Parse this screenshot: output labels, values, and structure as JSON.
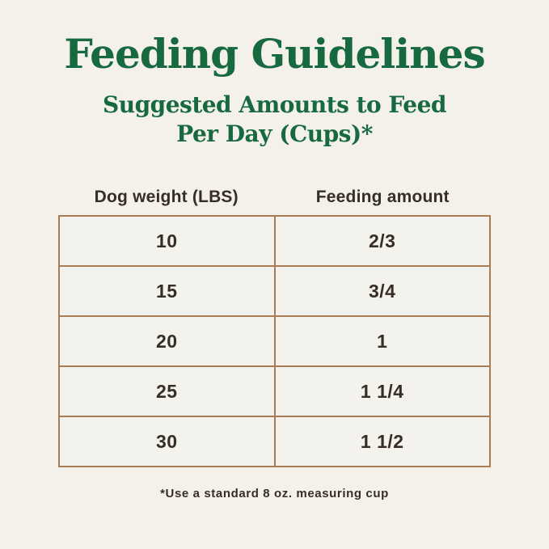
{
  "colors": {
    "background": "#f3f1ea",
    "title_green": "#17693f",
    "table_border_tan": "#a97c54",
    "text_dark_brown": "#382c26"
  },
  "header": {
    "title": "Feeding Guidelines",
    "subtitle_line1": "Suggested Amounts to Feed",
    "subtitle_line2": "Per Day (Cups)*"
  },
  "table": {
    "columns": [
      "Dog weight (LBS)",
      "Feeding amount"
    ],
    "rows": [
      {
        "weight": "10",
        "amount": "2/3"
      },
      {
        "weight": "15",
        "amount": "3/4"
      },
      {
        "weight": "20",
        "amount": "1"
      },
      {
        "weight": "25",
        "amount": "1 1/4"
      },
      {
        "weight": "30",
        "amount": "1 1/2"
      }
    ]
  },
  "footnote": "*Use a standard 8 oz. measuring cup",
  "chart_data": {
    "type": "table",
    "title": "Feeding Guidelines",
    "subtitle": "Suggested Amounts to Feed Per Day (Cups)*",
    "columns": [
      "Dog weight (LBS)",
      "Feeding amount"
    ],
    "rows": [
      [
        "10",
        "2/3"
      ],
      [
        "15",
        "3/4"
      ],
      [
        "20",
        "1"
      ],
      [
        "25",
        "1 1/4"
      ],
      [
        "30",
        "1 1/2"
      ]
    ],
    "footnote": "*Use a standard 8 oz. measuring cup",
    "units": "cups per day",
    "layout": "two-column centered table with tan borders on cream background, green serif headings"
  }
}
